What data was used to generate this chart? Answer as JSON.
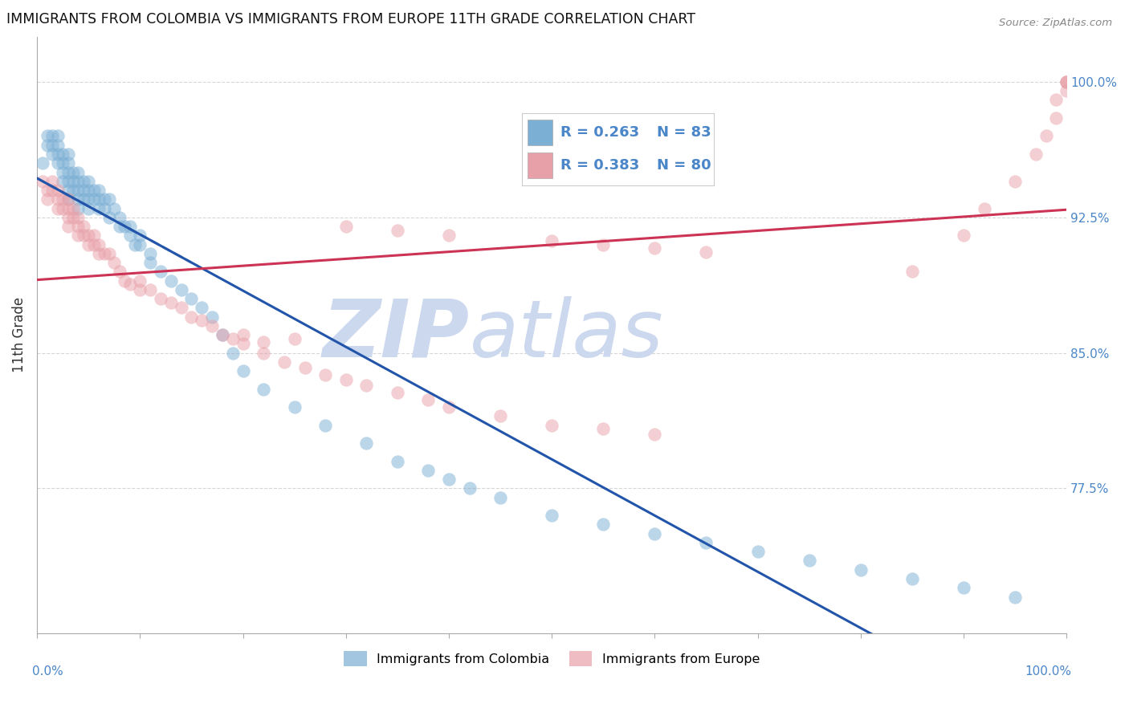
{
  "title": "IMMIGRANTS FROM COLOMBIA VS IMMIGRANTS FROM EUROPE 11TH GRADE CORRELATION CHART",
  "source": "Source: ZipAtlas.com",
  "ylabel": "11th Grade",
  "yaxis_labels": [
    "100.0%",
    "92.5%",
    "85.0%",
    "77.5%"
  ],
  "yaxis_values": [
    1.0,
    0.925,
    0.85,
    0.775
  ],
  "xlim": [
    0.0,
    1.0
  ],
  "ylim": [
    0.695,
    1.025
  ],
  "color_colombia": "#7bafd4",
  "color_europe": "#e8a0a8",
  "color_line_colombia": "#2255aa",
  "color_line_europe": "#cc3355",
  "color_text_blue": "#4a86c8",
  "col_legend_label": "Immigrants from Colombia",
  "eur_legend_label": "Immigrants from Europe",
  "colombia_x": [
    0.005,
    0.01,
    0.01,
    0.015,
    0.015,
    0.015,
    0.02,
    0.02,
    0.02,
    0.02,
    0.025,
    0.025,
    0.025,
    0.025,
    0.03,
    0.03,
    0.03,
    0.03,
    0.03,
    0.03,
    0.035,
    0.035,
    0.035,
    0.04,
    0.04,
    0.04,
    0.04,
    0.04,
    0.045,
    0.045,
    0.045,
    0.05,
    0.05,
    0.05,
    0.05,
    0.055,
    0.055,
    0.06,
    0.06,
    0.06,
    0.065,
    0.065,
    0.07,
    0.07,
    0.075,
    0.08,
    0.08,
    0.085,
    0.09,
    0.09,
    0.095,
    0.1,
    0.1,
    0.11,
    0.11,
    0.12,
    0.13,
    0.14,
    0.15,
    0.16,
    0.17,
    0.18,
    0.19,
    0.2,
    0.22,
    0.25,
    0.28,
    0.32,
    0.35,
    0.38,
    0.4,
    0.42,
    0.45,
    0.5,
    0.55,
    0.6,
    0.65,
    0.7,
    0.75,
    0.8,
    0.85,
    0.9,
    0.95
  ],
  "colombia_y": [
    0.955,
    0.97,
    0.965,
    0.97,
    0.965,
    0.96,
    0.97,
    0.965,
    0.96,
    0.955,
    0.96,
    0.955,
    0.95,
    0.945,
    0.96,
    0.955,
    0.95,
    0.945,
    0.94,
    0.935,
    0.95,
    0.945,
    0.94,
    0.95,
    0.945,
    0.94,
    0.935,
    0.93,
    0.945,
    0.94,
    0.935,
    0.945,
    0.94,
    0.935,
    0.93,
    0.94,
    0.935,
    0.94,
    0.935,
    0.93,
    0.935,
    0.93,
    0.935,
    0.925,
    0.93,
    0.925,
    0.92,
    0.92,
    0.92,
    0.915,
    0.91,
    0.915,
    0.91,
    0.905,
    0.9,
    0.895,
    0.89,
    0.885,
    0.88,
    0.875,
    0.87,
    0.86,
    0.85,
    0.84,
    0.83,
    0.82,
    0.81,
    0.8,
    0.79,
    0.785,
    0.78,
    0.775,
    0.77,
    0.76,
    0.755,
    0.75,
    0.745,
    0.74,
    0.735,
    0.73,
    0.725,
    0.72,
    0.715
  ],
  "europe_x": [
    0.005,
    0.01,
    0.01,
    0.015,
    0.015,
    0.02,
    0.02,
    0.02,
    0.025,
    0.025,
    0.03,
    0.03,
    0.03,
    0.03,
    0.035,
    0.035,
    0.04,
    0.04,
    0.04,
    0.045,
    0.045,
    0.05,
    0.05,
    0.055,
    0.055,
    0.06,
    0.06,
    0.065,
    0.07,
    0.075,
    0.08,
    0.085,
    0.09,
    0.1,
    0.1,
    0.11,
    0.12,
    0.13,
    0.14,
    0.15,
    0.16,
    0.17,
    0.18,
    0.19,
    0.2,
    0.22,
    0.24,
    0.26,
    0.28,
    0.3,
    0.32,
    0.35,
    0.38,
    0.4,
    0.45,
    0.5,
    0.55,
    0.6,
    0.85,
    0.9,
    0.92,
    0.95,
    0.97,
    0.98,
    0.99,
    0.99,
    1.0,
    1.0,
    1.0,
    1.0,
    0.3,
    0.35,
    0.4,
    0.5,
    0.55,
    0.6,
    0.65,
    0.2,
    0.25,
    0.22
  ],
  "europe_y": [
    0.945,
    0.94,
    0.935,
    0.945,
    0.94,
    0.94,
    0.935,
    0.93,
    0.935,
    0.93,
    0.935,
    0.93,
    0.925,
    0.92,
    0.93,
    0.925,
    0.925,
    0.92,
    0.915,
    0.92,
    0.915,
    0.915,
    0.91,
    0.915,
    0.91,
    0.91,
    0.905,
    0.905,
    0.905,
    0.9,
    0.895,
    0.89,
    0.888,
    0.89,
    0.885,
    0.885,
    0.88,
    0.878,
    0.875,
    0.87,
    0.868,
    0.865,
    0.86,
    0.858,
    0.855,
    0.85,
    0.845,
    0.842,
    0.838,
    0.835,
    0.832,
    0.828,
    0.824,
    0.82,
    0.815,
    0.81,
    0.808,
    0.805,
    0.895,
    0.915,
    0.93,
    0.945,
    0.96,
    0.97,
    0.98,
    0.99,
    0.995,
    1.0,
    1.0,
    1.0,
    0.92,
    0.918,
    0.915,
    0.912,
    0.91,
    0.908,
    0.906,
    0.86,
    0.858,
    0.856
  ]
}
